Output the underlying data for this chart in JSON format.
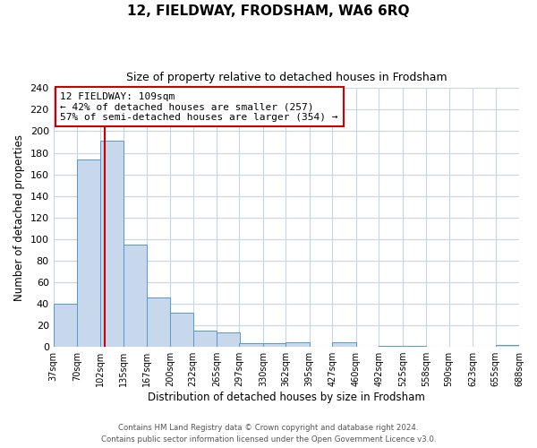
{
  "title": "12, FIELDWAY, FRODSHAM, WA6 6RQ",
  "subtitle": "Size of property relative to detached houses in Frodsham",
  "xlabel": "Distribution of detached houses by size in Frodsham",
  "ylabel": "Number of detached properties",
  "bar_color": "#c8d8ec",
  "bar_edge_color": "#5599cc",
  "bar_left_edges": [
    37,
    70,
    102,
    135,
    167,
    200,
    232,
    265,
    297,
    330,
    362,
    395,
    427,
    460,
    492,
    525,
    558,
    590,
    623,
    655
  ],
  "bar_heights": [
    40,
    174,
    191,
    95,
    46,
    32,
    15,
    13,
    3,
    3,
    4,
    0,
    4,
    0,
    1,
    1,
    0,
    0,
    0,
    2
  ],
  "bin_width": 33,
  "xlim_left": 37,
  "xlim_right": 688,
  "ylim_top": 240,
  "yticks": [
    0,
    20,
    40,
    60,
    80,
    100,
    120,
    140,
    160,
    180,
    200,
    220,
    240
  ],
  "xtick_labels": [
    "37sqm",
    "70sqm",
    "102sqm",
    "135sqm",
    "167sqm",
    "200sqm",
    "232sqm",
    "265sqm",
    "297sqm",
    "330sqm",
    "362sqm",
    "395sqm",
    "427sqm",
    "460sqm",
    "492sqm",
    "525sqm",
    "558sqm",
    "590sqm",
    "623sqm",
    "655sqm",
    "688sqm"
  ],
  "xtick_positions": [
    37,
    70,
    102,
    135,
    167,
    200,
    232,
    265,
    297,
    330,
    362,
    395,
    427,
    460,
    492,
    525,
    558,
    590,
    623,
    655,
    688
  ],
  "property_line_x": 109,
  "annotation_line1": "12 FIELDWAY: 109sqm",
  "annotation_line2": "← 42% of detached houses are smaller (257)",
  "annotation_line3": "57% of semi-detached houses are larger (354) →",
  "annotation_box_color": "#ffffff",
  "annotation_box_edge_color": "#cc0000",
  "property_line_color": "#cc0000",
  "footer_line1": "Contains HM Land Registry data © Crown copyright and database right 2024.",
  "footer_line2": "Contains public sector information licensed under the Open Government Licence v3.0.",
  "background_color": "#ffffff",
  "grid_color": "#c8d4e0"
}
